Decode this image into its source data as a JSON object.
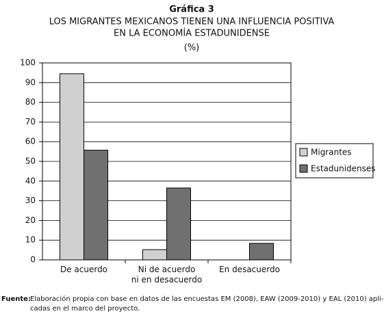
{
  "chart_data": {
    "type": "bar",
    "title": "Gráfica 3",
    "subtitle": [
      "LOS MIGRANTES MEXICANOS TIENEN UNA INFLUENCIA POSITIVA",
      "EN LA ECONOMÍA ESTADUNIDENSE"
    ],
    "unit": "(%)",
    "categories": [
      "De acuerdo",
      "Ni de acuerdo\nni en desacuerdo",
      "En desacuerdo"
    ],
    "series": [
      {
        "name": "Migrantes",
        "color": "#d0d0d0",
        "values": [
          94.5,
          5.2,
          0
        ]
      },
      {
        "name": "Estadunidenses",
        "color": "#707070",
        "values": [
          55.7,
          36.5,
          8.4
        ]
      }
    ],
    "ylim": [
      0,
      100
    ],
    "yticks": [
      0,
      10,
      20,
      30,
      40,
      50,
      60,
      70,
      80,
      90,
      100
    ],
    "grid": true,
    "legend": "right",
    "source": {
      "label": "Fuente:",
      "lines": [
        "Elaboración propia con base en datos de las encuestas EM (2008), EAW (2009-2010) y EAL (2010) apli-",
        "cadas en el marco del proyecto."
      ]
    }
  }
}
